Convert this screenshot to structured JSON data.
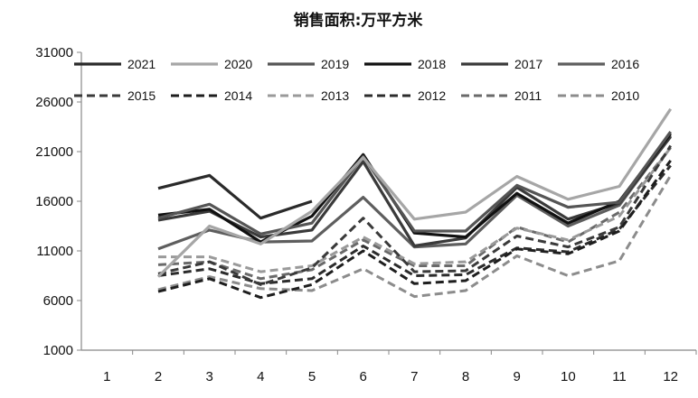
{
  "chart_data": {
    "type": "line",
    "title": "销售面积:万平方米",
    "xlabel": "",
    "ylabel": "",
    "categories": [
      "1",
      "2",
      "3",
      "4",
      "5",
      "6",
      "7",
      "8",
      "9",
      "10",
      "11",
      "12"
    ],
    "ylim": [
      1000,
      31000
    ],
    "yticks": [
      1000,
      6000,
      11000,
      16000,
      21000,
      26000,
      31000
    ],
    "grid": false,
    "legend": "top",
    "series": [
      {
        "name": "2021",
        "color": "#2a2a2a",
        "dashed": false,
        "values": [
          null,
          17300,
          18600,
          14300,
          16000,
          null,
          null,
          null,
          null,
          null,
          null,
          null
        ]
      },
      {
        "name": "2020",
        "color": "#a6a6a6",
        "dashed": false,
        "values": [
          null,
          8400,
          13500,
          11700,
          15000,
          20400,
          14200,
          14900,
          18500,
          16200,
          17500,
          25300
        ]
      },
      {
        "name": "2019",
        "color": "#555555",
        "dashed": false,
        "values": [
          null,
          14300,
          15700,
          12700,
          13800,
          20500,
          13000,
          13000,
          17600,
          15400,
          15900,
          23000
        ]
      },
      {
        "name": "2018",
        "color": "#111111",
        "dashed": false,
        "values": [
          null,
          14600,
          15200,
          11900,
          14500,
          20700,
          12800,
          12400,
          16800,
          13800,
          16000,
          22800
        ]
      },
      {
        "name": "2017",
        "color": "#3a3a3a",
        "dashed": false,
        "values": [
          null,
          14100,
          15000,
          12400,
          13100,
          20000,
          11500,
          12300,
          17400,
          14200,
          15800,
          22500
        ]
      },
      {
        "name": "2016",
        "color": "#5e5e5e",
        "dashed": false,
        "values": [
          null,
          11200,
          13100,
          11900,
          12000,
          16400,
          11400,
          11700,
          16600,
          13500,
          15600,
          22600
        ]
      },
      {
        "name": "2015",
        "color": "#3a3a3a",
        "dashed": true,
        "values": [
          null,
          8700,
          9900,
          7600,
          9300,
          14300,
          8900,
          9000,
          12500,
          11400,
          13400,
          21600
        ]
      },
      {
        "name": "2014",
        "color": "#1e1e1e",
        "dashed": true,
        "values": [
          null,
          6900,
          8200,
          6300,
          7600,
          11000,
          7700,
          8000,
          11200,
          10700,
          13000,
          20100
        ]
      },
      {
        "name": "2013",
        "color": "#9a9a9a",
        "dashed": true,
        "values": [
          null,
          10400,
          10400,
          8900,
          9500,
          12400,
          9700,
          9900,
          13300,
          12100,
          14500,
          21400
        ]
      },
      {
        "name": "2012",
        "color": "#2c2c2c",
        "dashed": true,
        "values": [
          null,
          8500,
          9200,
          7700,
          8200,
          11500,
          8500,
          8600,
          11300,
          10900,
          13200,
          19600
        ]
      },
      {
        "name": "2011",
        "color": "#6a6a6a",
        "dashed": true,
        "values": [
          null,
          9600,
          9900,
          8200,
          9100,
          12100,
          9500,
          9500,
          13400,
          11900,
          14900,
          21400
        ]
      },
      {
        "name": "2010",
        "color": "#8c8c8c",
        "dashed": true,
        "values": [
          null,
          7100,
          8400,
          7200,
          7000,
          9200,
          6400,
          7000,
          10500,
          8500,
          10000,
          18600
        ]
      }
    ]
  }
}
